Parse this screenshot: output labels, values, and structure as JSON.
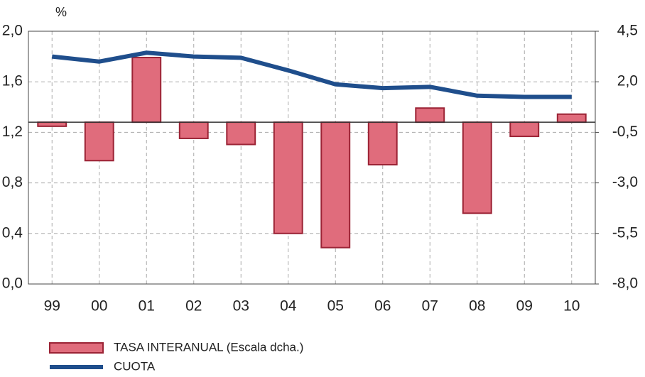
{
  "chart_data": {
    "type": "bar",
    "y_unit": "%",
    "categories": [
      "99",
      "00",
      "01",
      "02",
      "03",
      "04",
      "05",
      "06",
      "07",
      "08",
      "09",
      "10"
    ],
    "series": [
      {
        "name": "TASA INTERANUAL (Escala dcha.)",
        "type": "bar",
        "axis": "y2",
        "color": "#e06c7c",
        "edge_color": "#9b2335",
        "values": [
          -0.2,
          -1.9,
          3.2,
          -0.8,
          -1.1,
          -5.5,
          -6.2,
          -2.1,
          0.7,
          -4.5,
          -0.7,
          0.4
        ]
      },
      {
        "name": "CUOTA",
        "type": "line",
        "color": "#1f4e8c",
        "values": [
          1.8,
          1.76,
          1.83,
          1.8,
          1.79,
          1.69,
          1.58,
          1.55,
          1.56,
          1.49,
          1.48,
          1.48
        ]
      }
    ],
    "ylim": [
      0,
      2.0
    ],
    "yticks": [
      {
        "value": 0,
        "label": "0,0"
      },
      {
        "value": 0.4,
        "label": "0,4"
      },
      {
        "value": 0.8,
        "label": "0,8"
      },
      {
        "value": 1.2,
        "label": "1,2"
      },
      {
        "value": 1.6,
        "label": "1,6"
      },
      {
        "value": 2.0,
        "label": "2,0"
      }
    ],
    "y2lim": [
      -8.0,
      4.5
    ],
    "y2ticks": [
      {
        "value": -8.0,
        "label": "-8,0"
      },
      {
        "value": -5.5,
        "label": "-5,5"
      },
      {
        "value": -3.0,
        "label": "-3,0"
      },
      {
        "value": -0.5,
        "label": "-0,5"
      },
      {
        "value": 2.0,
        "label": "2,0"
      },
      {
        "value": 4.5,
        "label": "4,5"
      }
    ],
    "grid": true
  }
}
